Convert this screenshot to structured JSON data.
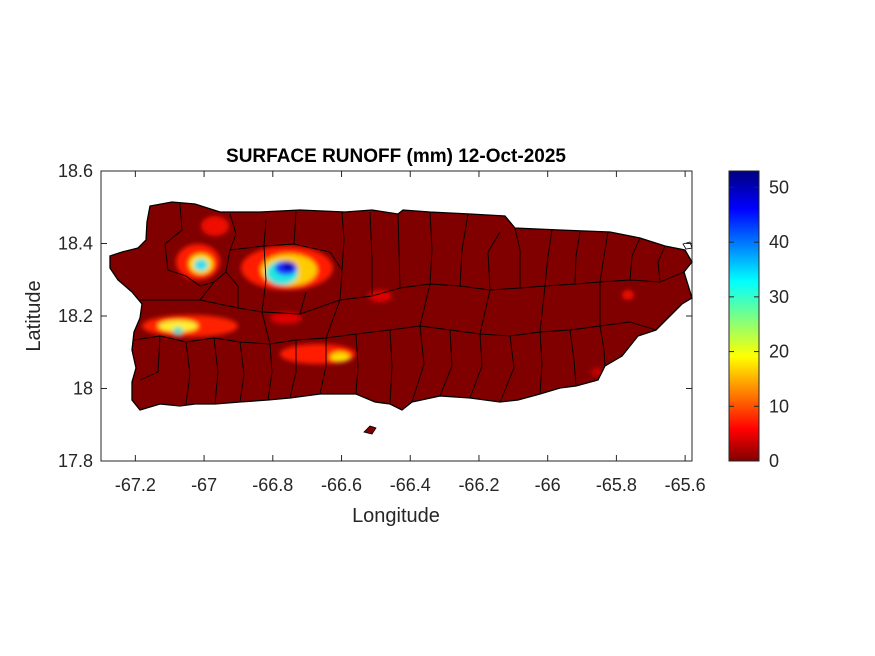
{
  "chart_data": {
    "type": "heatmap",
    "title": "SURFACE RUNOFF (mm) 12-Oct-2025",
    "xlabel": "Longitude",
    "ylabel": "Latitude",
    "xlim": [
      -67.3,
      -65.58
    ],
    "ylim": [
      17.8,
      18.6
    ],
    "xticks": [
      -67.2,
      -67,
      -66.8,
      -66.6,
      -66.4,
      -66.2,
      -66,
      -65.8,
      -65.6
    ],
    "xtick_labels": [
      "-67.2",
      "-67",
      "-66.8",
      "-66.6",
      "-66.4",
      "-66.2",
      "-66",
      "-65.8",
      "-65.6"
    ],
    "yticks": [
      17.8,
      18,
      18.2,
      18.4,
      18.6
    ],
    "ytick_labels": [
      "17.8",
      "18",
      "18.2",
      "18.4",
      "18.6"
    ],
    "colorbar": {
      "colormap": "jet",
      "min": 0,
      "max": 53,
      "ticks": [
        0,
        10,
        20,
        30,
        40,
        50
      ],
      "tick_labels": [
        "0",
        "10",
        "20",
        "30",
        "40",
        "50"
      ]
    },
    "background_value": 0,
    "runoff_hotspots": [
      {
        "lon": -66.79,
        "lat": 18.33,
        "peak_mm": 53
      },
      {
        "lon": -66.83,
        "lat": 18.3,
        "peak_mm": 34
      },
      {
        "lon": -67.03,
        "lat": 18.34,
        "peak_mm": 33
      },
      {
        "lon": -67.08,
        "lat": 18.16,
        "peak_mm": 30
      },
      {
        "lon": -67.13,
        "lat": 18.18,
        "peak_mm": 20
      },
      {
        "lon": -66.68,
        "lat": 18.09,
        "peak_mm": 18
      },
      {
        "lon": -66.87,
        "lat": 18.22,
        "peak_mm": 12
      },
      {
        "lon": -66.55,
        "lat": 18.27,
        "peak_mm": 10
      },
      {
        "lon": -65.79,
        "lat": 18.26,
        "peak_mm": 8
      },
      {
        "lon": -65.86,
        "lat": 18.04,
        "peak_mm": 6
      }
    ],
    "grid": false,
    "legend": "none"
  }
}
